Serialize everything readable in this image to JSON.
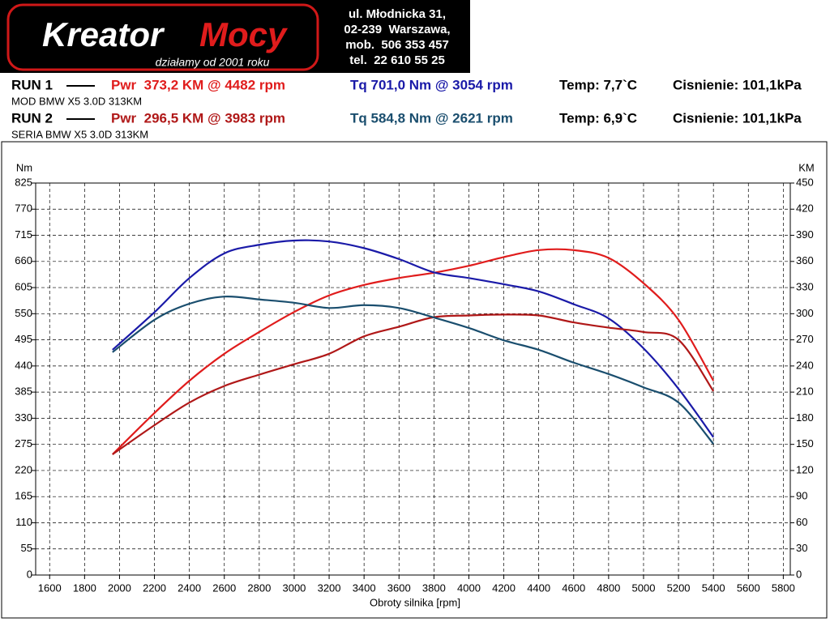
{
  "logo": {
    "name1": "Kreator",
    "name2": "Mocy",
    "slogan": "działamy od 2001 roku"
  },
  "address": [
    "ul. Młodnicka 31,",
    "02-239  Warszawa,",
    "mob.  506 353 457",
    "tel.  22 610 55 25"
  ],
  "chart_data": {
    "type": "line",
    "runs": [
      {
        "label": "RUN 1",
        "description": "MOD BMW X5 3.0D 313KM",
        "temp": "Temp: 7,7`C",
        "pressure": "Cisnienie: 101,1kPa"
      },
      {
        "label": "RUN 2",
        "description": "SERIA BMW X5 3.0D 313KM",
        "temp": "Temp: 6,9`C",
        "pressure": "Cisnienie: 101,1kPa"
      }
    ],
    "x_label": "Obroty silnika [rpm]",
    "y_label": "Nm",
    "y2_label": "KM",
    "x": [
      1960,
      2200,
      2400,
      2600,
      2800,
      3000,
      3200,
      3400,
      3600,
      3800,
      4000,
      4200,
      4400,
      4600,
      4800,
      5000,
      5200,
      5400
    ],
    "series": [
      {
        "name": "Pwr  373,2 KM @ 4482 rpm",
        "color": "#e01c1c",
        "axis": "y2",
        "values": [
          138.5,
          186,
          223,
          254,
          279,
          302,
          321,
          333,
          341,
          347,
          355,
          365,
          373,
          373,
          364,
          335,
          293,
          223
        ]
      },
      {
        "name": "Tq 701,0 Nm @ 3054 rpm",
        "color": "#1a1aa8",
        "axis": "y",
        "values": [
          474,
          553,
          625,
          677,
          695,
          704,
          702,
          688,
          665,
          637,
          625,
          612,
          597,
          570,
          540,
          477,
          392,
          290
        ]
      },
      {
        "name": "Pwr  296,5 KM @ 3983 rpm",
        "color": "#b01818",
        "axis": "y2",
        "values": [
          138.5,
          172,
          198,
          217,
          230,
          242,
          254,
          274,
          285,
          296,
          298,
          299,
          298,
          290,
          284,
          279,
          270,
          211
        ]
      },
      {
        "name": "Tq 584,8 Nm @ 2621 rpm",
        "color": "#1a4e6e",
        "axis": "y",
        "values": [
          469,
          537,
          571,
          586,
          580,
          573,
          562,
          568,
          562,
          542,
          520,
          494,
          474,
          447,
          423,
          395,
          363,
          276
        ]
      }
    ],
    "xlim": [
      1520,
      5840
    ],
    "ylim": [
      0,
      825
    ],
    "y2lim": [
      0,
      450
    ],
    "xticks": [
      1600,
      1800,
      2000,
      2200,
      2400,
      2600,
      2800,
      3000,
      3200,
      3400,
      3600,
      3800,
      4000,
      4200,
      4400,
      4600,
      4800,
      5000,
      5200,
      5400,
      5600,
      5800
    ],
    "yticks": [
      0,
      55,
      110,
      165,
      220,
      275,
      330,
      385,
      440,
      495,
      550,
      605,
      660,
      715,
      770,
      825
    ],
    "y2ticks": [
      0,
      30,
      60,
      90,
      120,
      150,
      180,
      210,
      240,
      270,
      300,
      330,
      360,
      390,
      420,
      450
    ],
    "grid": true
  }
}
